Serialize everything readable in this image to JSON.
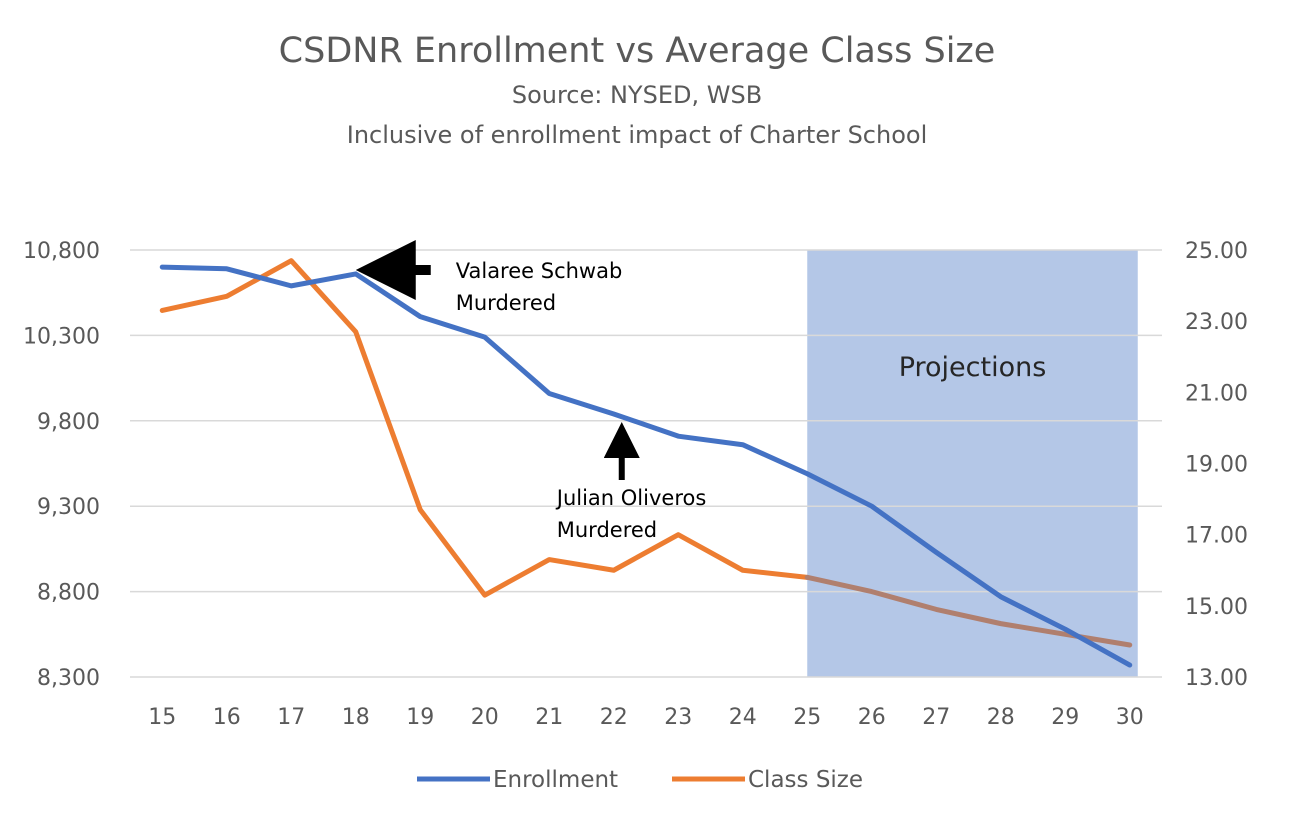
{
  "chart_data": {
    "type": "line",
    "title": "CSDNR Enrollment vs Average Class Size",
    "subtitle_lines": [
      "Source: NYSED, WSB",
      "Inclusive of enrollment impact of Charter School"
    ],
    "categories": [
      "15",
      "16",
      "17",
      "18",
      "19",
      "20",
      "21",
      "22",
      "23",
      "24",
      "25",
      "26",
      "27",
      "28",
      "29",
      "30"
    ],
    "y_left": {
      "min": 8300,
      "max": 10800,
      "ticks": [
        8300,
        8800,
        9300,
        9800,
        10300,
        10800
      ],
      "tick_labels": [
        "8,300",
        "8,800",
        "9,300",
        "9,800",
        "10,300",
        "10,800"
      ]
    },
    "y_right": {
      "min": 13,
      "max": 25,
      "ticks": [
        13,
        15,
        17,
        19,
        21,
        23,
        25
      ],
      "tick_labels": [
        "13.00",
        "15.00",
        "17.00",
        "19.00",
        "21.00",
        "23.00",
        "25.00"
      ]
    },
    "series": [
      {
        "name": "Enrollment",
        "axis": "left",
        "color": "#4472C4",
        "values": [
          10700,
          10690,
          10590,
          10660,
          10410,
          10290,
          9960,
          9840,
          9710,
          9660,
          9490,
          9300,
          9030,
          8770,
          8580,
          8370
        ]
      },
      {
        "name": "Class Size",
        "axis": "right",
        "color": "#ED7D31",
        "projection_color": "#B07F6E",
        "values": [
          23.3,
          23.7,
          24.7,
          22.7,
          17.7,
          15.3,
          16.3,
          16.0,
          17.0,
          16.0,
          15.8,
          15.4,
          14.9,
          14.5,
          14.2,
          13.9
        ]
      }
    ],
    "projection_region": {
      "label": "Projections",
      "from_category": "25",
      "to_category": "30",
      "color": "#B4C7E7"
    },
    "annotations": [
      {
        "lines": [
          "Valaree Schwab",
          "Murdered"
        ],
        "category": "18",
        "arrow": "left"
      },
      {
        "lines": [
          "Julian Oliveros",
          "Murdered"
        ],
        "category": "22",
        "arrow": "up"
      }
    ],
    "grid": true,
    "legend_position": "bottom"
  }
}
